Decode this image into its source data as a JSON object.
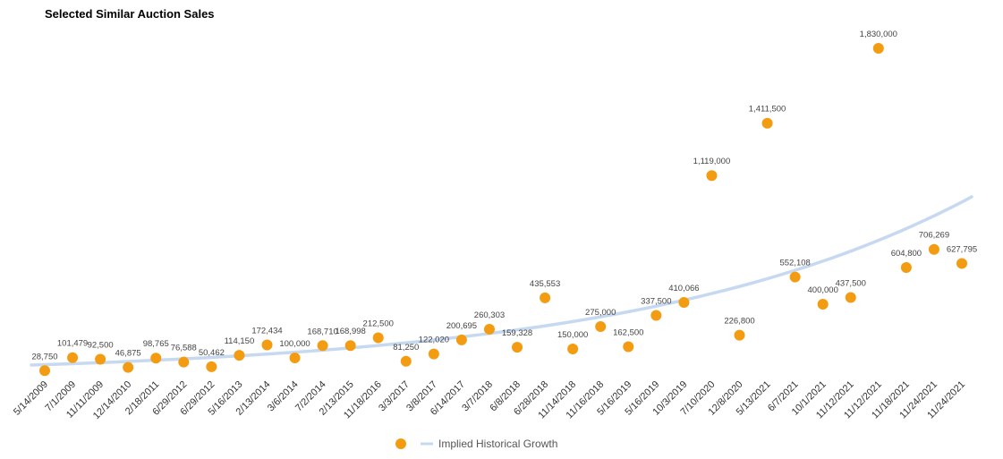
{
  "chart_data": {
    "type": "scatter",
    "title": "Selected Similar Auction Sales",
    "xlabel": "",
    "ylabel": "",
    "ylim": [
      0,
      2000000
    ],
    "categories": [
      "5/14/2009",
      "7/1/2009",
      "11/11/2009",
      "12/14/2010",
      "2/18/2011",
      "6/29/2012",
      "6/29/2012",
      "5/16/2013",
      "2/13/2014",
      "3/6/2014",
      "7/2/2014",
      "2/13/2015",
      "11/18/2016",
      "3/3/2017",
      "3/8/2017",
      "6/14/2017",
      "3/7/2018",
      "6/8/2018",
      "6/28/2018",
      "11/14/2018",
      "11/16/2018",
      "5/16/2019",
      "5/16/2019",
      "10/3/2019",
      "7/10/2020",
      "12/8/2020",
      "5/13/2021",
      "6/7/2021",
      "10/1/2021",
      "11/12/2021",
      "11/12/2021",
      "11/18/2021",
      "11/24/2021",
      "11/24/2021"
    ],
    "series": [
      {
        "name": "",
        "color": "#F39C12",
        "values": [
          28750,
          101479,
          92500,
          46875,
          98765,
          76588,
          50462,
          114150,
          172434,
          100000,
          168710,
          168998,
          212500,
          81250,
          122020,
          200695,
          260303,
          159328,
          435553,
          150000,
          275000,
          162500,
          337500,
          410066,
          1119000,
          226800,
          1411500,
          552108,
          400000,
          437500,
          1830000,
          604800,
          706269,
          627795
        ],
        "labels": [
          "28,750",
          "101,479",
          "92,500",
          "46,875",
          "98,765",
          "76,588",
          "50,462",
          "114,150",
          "172,434",
          "100,000",
          "168,710",
          "168,998",
          "212,500",
          "81,250",
          "122,020",
          "200,695",
          "260,303",
          "159,328",
          "435,553",
          "150,000",
          "275,000",
          "162,500",
          "337,500",
          "410,066",
          "1,119,000",
          "226,800",
          "1,411,500",
          "552,108",
          "400,000",
          "437,500",
          "1,830,000",
          "604,800",
          "706,269",
          "627,795"
        ]
      },
      {
        "name": "Implied Historical Growth",
        "type": "line",
        "color": "#C6D9F1",
        "start_value": 60000,
        "end_value": 1000000
      }
    ],
    "legend": {
      "position": "bottom",
      "entries": [
        "",
        "Implied Historical Growth"
      ]
    }
  }
}
